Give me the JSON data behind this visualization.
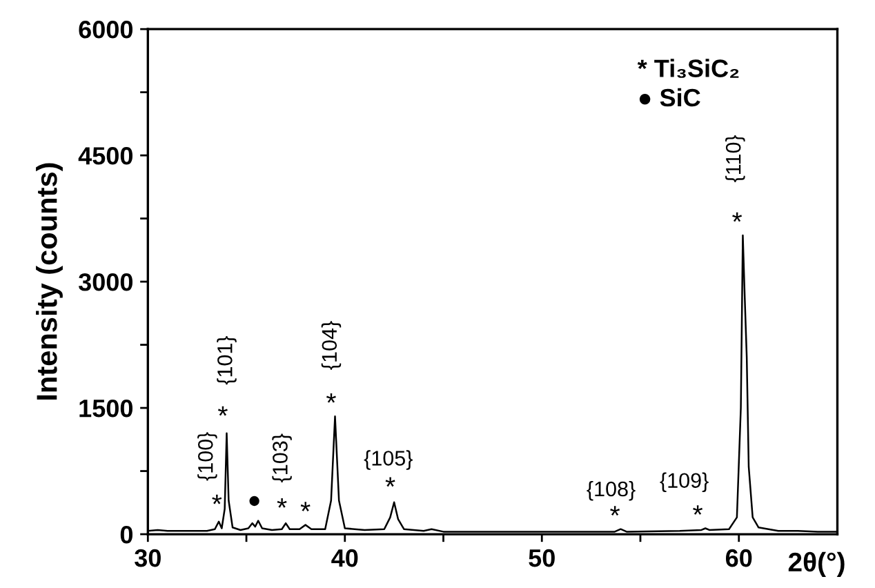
{
  "chart_data": {
    "type": "line",
    "xlabel": "2θ(°)",
    "ylabel": "Intensity (counts)",
    "x": [
      30.0,
      30.5,
      31,
      32,
      33,
      33.4,
      33.6,
      33.75,
      33.9,
      34.0,
      34.1,
      34.3,
      34.7,
      35.1,
      35.3,
      35.45,
      35.6,
      35.8,
      36.3,
      36.8,
      37.0,
      37.2,
      37.7,
      38.0,
      38.3,
      39.0,
      39.3,
      39.5,
      39.7,
      40.0,
      41,
      42.0,
      42.3,
      42.5,
      42.7,
      43.0,
      44.0,
      44.4,
      45,
      48,
      52,
      53.7,
      54.0,
      54.3,
      57,
      58.1,
      58.3,
      58.5,
      59.5,
      59.9,
      60.1,
      60.2,
      60.3,
      60.4,
      60.5,
      60.7,
      61,
      61.5,
      62,
      63,
      64,
      65
    ],
    "series": [
      {
        "color": "#000000",
        "values": [
          40,
          50,
          40,
          40,
          40,
          60,
          150,
          70,
          300,
          1200,
          400,
          80,
          50,
          70,
          130,
          90,
          160,
          70,
          50,
          60,
          130,
          60,
          60,
          110,
          60,
          60,
          400,
          1400,
          400,
          70,
          50,
          60,
          200,
          380,
          180,
          60,
          40,
          60,
          30,
          30,
          30,
          30,
          60,
          30,
          40,
          50,
          70,
          50,
          60,
          200,
          1500,
          3550,
          2800,
          2100,
          800,
          200,
          80,
          60,
          40,
          40,
          30,
          30
        ]
      }
    ],
    "xlim": [
      30,
      65
    ],
    "xticks": [
      30,
      {
        "value": 35,
        "label": null
      },
      40,
      {
        "value": 45,
        "label": null
      },
      50,
      {
        "value": 55,
        "label": null
      },
      60
    ],
    "ylim": [
      0,
      6000
    ],
    "yticks": [
      0,
      {
        "value": 750,
        "label": null
      },
      1500,
      {
        "value": 2250,
        "label": null
      },
      3000,
      {
        "value": 3750,
        "label": null
      },
      4500,
      {
        "value": 5250,
        "label": null
      },
      6000
    ],
    "grid": false,
    "marker": "none",
    "line_style": "solid",
    "annotations": [
      {
        "text": "*",
        "x": 33.6,
        "y": 150
      },
      {
        "text": "{100}",
        "x": 33.6,
        "y": 150
      },
      {
        "text": "*",
        "x": 34.0,
        "y": 1200
      },
      {
        "text": "{101}",
        "x": 34.0,
        "y": 1200
      },
      {
        "text": "●",
        "x": 35.6,
        "y": 160
      },
      {
        "text": "*",
        "x": 37.0,
        "y": 130
      },
      {
        "text": "{103}",
        "x": 37.0,
        "y": 130
      },
      {
        "text": "*",
        "x": 38.0,
        "y": 110
      },
      {
        "text": "*",
        "x": 39.5,
        "y": 1400
      },
      {
        "text": "{104}",
        "x": 39.5,
        "y": 1400
      },
      {
        "text": "*",
        "x": 42.5,
        "y": 380
      },
      {
        "text": "{105}",
        "x": 42.5,
        "y": 380
      },
      {
        "text": "*",
        "x": 54.0,
        "y": 60
      },
      {
        "text": "{108}",
        "x": 54.0,
        "y": 60
      },
      {
        "text": "*",
        "x": 58.3,
        "y": 70
      },
      {
        "text": "{109}",
        "x": 58.3,
        "y": 70
      },
      {
        "text": "*",
        "x": 60.2,
        "y": 3550
      },
      {
        "text": "{110}",
        "x": 60.2,
        "y": 3550
      },
      "* Ti₃SiC₂",
      "● SiC"
    ]
  }
}
